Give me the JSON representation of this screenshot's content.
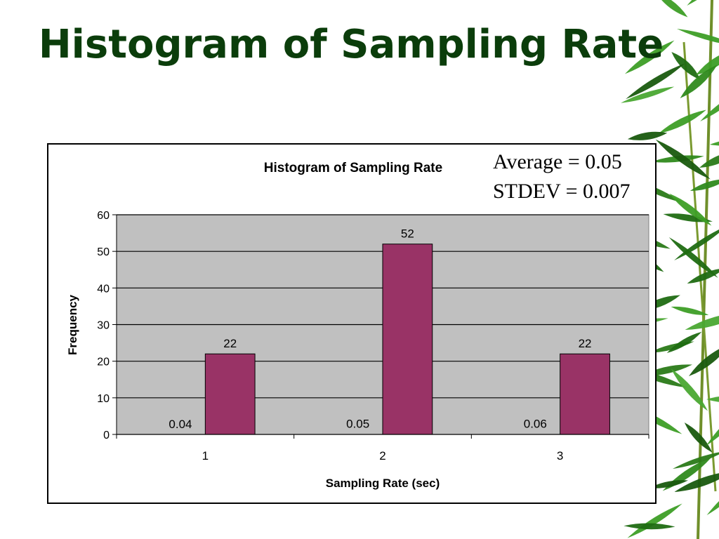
{
  "slide": {
    "title": "Histogram of Sampling Rate"
  },
  "stats": {
    "average": "Average = 0.05",
    "stdev": "STDEV = 0.007"
  },
  "colors": {
    "title": "#0b3d0b",
    "bar": "#993366",
    "plot_bg": "#c0c0c0",
    "gridline": "#000000"
  },
  "decoration": {
    "image": "bamboo-leaves-icon"
  },
  "chart_data": {
    "type": "bar",
    "title": "Histogram of Sampling Rate",
    "xlabel": "Sampling Rate (sec)",
    "ylabel": "Frequency",
    "categories": [
      "1",
      "2",
      "3"
    ],
    "series": [
      {
        "values": [
          0.04,
          0.05,
          0.06
        ],
        "labels": [
          "0.04",
          "0.05",
          "0.06"
        ]
      },
      {
        "values": [
          22,
          52,
          22
        ],
        "labels": [
          "22",
          "52",
          "22"
        ]
      }
    ],
    "ylim": [
      0,
      60
    ],
    "yticks": [
      0,
      10,
      20,
      30,
      40,
      50,
      60
    ],
    "grid": true,
    "legend": "none"
  }
}
